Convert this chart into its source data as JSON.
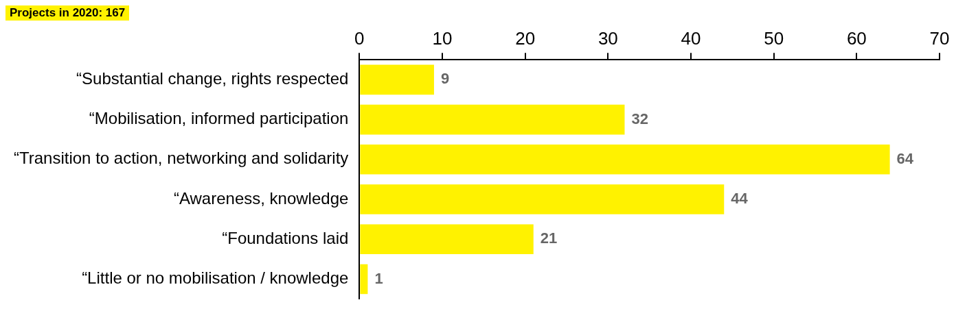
{
  "chart_data": {
    "type": "bar",
    "orientation": "horizontal",
    "title": "Projects in 2020: 167",
    "categories": [
      "“Substantial change, rights respected",
      "“Mobilisation, informed participation",
      "“Transition to action, networking and solidarity",
      "“Awareness, knowledge",
      "“Foundations laid",
      "“Little or no mobilisation / knowledge"
    ],
    "values": [
      9,
      32,
      64,
      44,
      21,
      1
    ],
    "color": "#fff200",
    "xlim": [
      0,
      70
    ],
    "xticks": [
      0,
      10,
      20,
      30,
      40,
      50,
      60,
      70
    ],
    "grid": false,
    "legend": false,
    "data_labels": true
  }
}
